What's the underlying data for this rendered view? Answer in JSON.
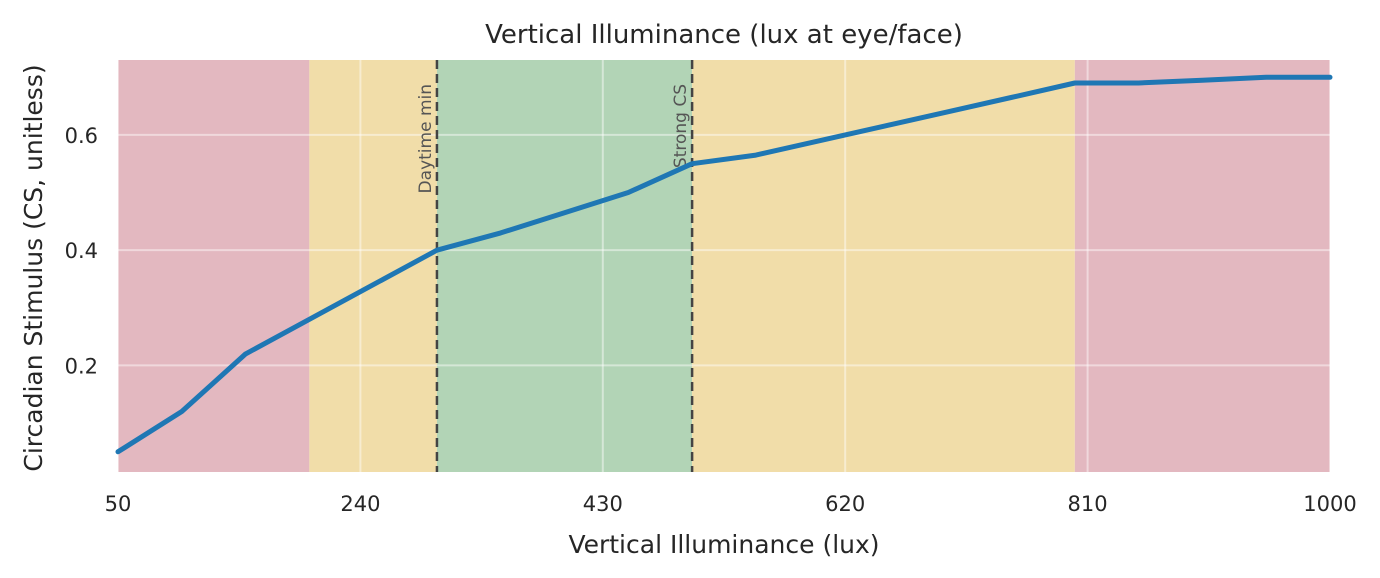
{
  "chart_data": {
    "type": "line",
    "title": "Vertical Illuminance (lux at eye/face)",
    "xlabel": "Vertical Illuminance (lux)",
    "ylabel": "Circadian Stimulus (CS, unitless)",
    "xlim": [
      50,
      1000
    ],
    "ylim": [
      0.015,
      0.73
    ],
    "xticks": [
      50,
      240,
      430,
      620,
      810,
      1000
    ],
    "xtick_labels": [
      "50",
      "240",
      "430",
      "620",
      "810",
      "1000"
    ],
    "yticks": [
      0.2,
      0.4,
      0.6
    ],
    "ytick_labels": [
      "0.2",
      "0.4",
      "0.6"
    ],
    "grid": true,
    "series": [
      {
        "x": [
          50,
          100,
          150,
          200,
          250,
          300,
          350,
          400,
          450,
          500,
          550,
          600,
          650,
          700,
          750,
          800,
          850,
          900,
          950,
          1000
        ],
        "y": [
          0.05,
          0.12,
          0.22,
          0.28,
          0.34,
          0.4,
          0.43,
          0.465,
          0.5,
          0.55,
          0.565,
          0.59,
          0.615,
          0.64,
          0.665,
          0.69,
          0.69,
          0.695,
          0.7,
          0.7
        ],
        "color": "#1f77b4"
      }
    ],
    "bands": [
      {
        "x0": 50,
        "x1": 200,
        "color": "#e3b8c0"
      },
      {
        "x0": 200,
        "x1": 300,
        "color": "#f1dda9"
      },
      {
        "x0": 300,
        "x1": 500,
        "color": "#b2d4b6"
      },
      {
        "x0": 500,
        "x1": 800,
        "color": "#f1dda9"
      },
      {
        "x0": 800,
        "x1": 1000,
        "color": "#e3b8c0"
      }
    ],
    "reference_lines": [
      {
        "x": 300,
        "label": "Daytime min"
      },
      {
        "x": 500,
        "label": "Strong CS"
      }
    ]
  }
}
